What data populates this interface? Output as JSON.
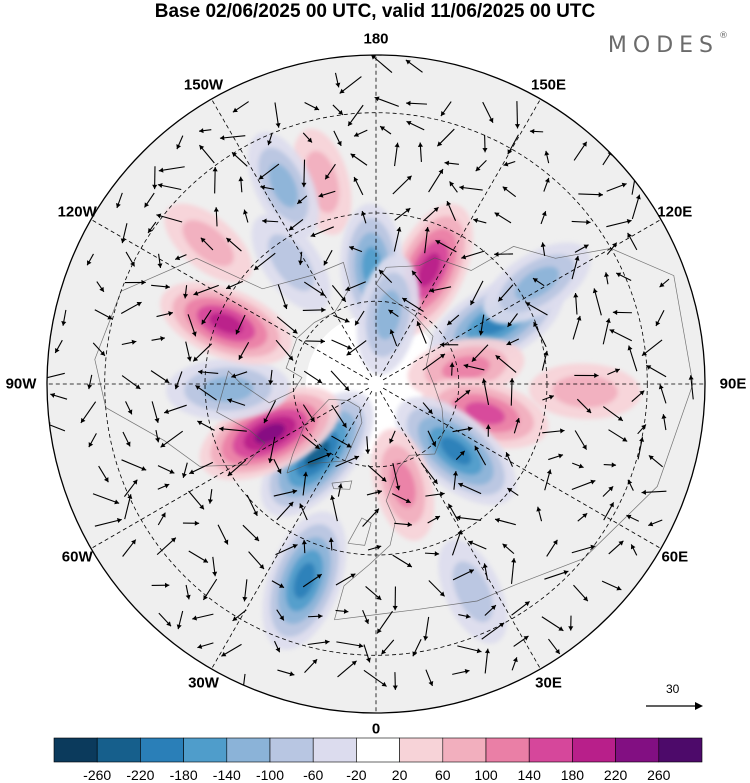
{
  "title": "Base 02/06/2025 00 UTC, valid 11/06/2025 00 UTC",
  "brand": {
    "name": "MODES",
    "mark": "®"
  },
  "map": {
    "projection": "north-polar-stereographic",
    "longitude_labels": [
      {
        "lon": 180,
        "text": "180"
      },
      {
        "lon": 150,
        "text": "150E"
      },
      {
        "lon": 120,
        "text": "120E"
      },
      {
        "lon": 90,
        "text": "90E"
      },
      {
        "lon": 60,
        "text": "60E"
      },
      {
        "lon": 30,
        "text": "30E"
      },
      {
        "lon": 0,
        "text": "0"
      },
      {
        "lon": -30,
        "text": "30W"
      },
      {
        "lon": -60,
        "text": "60W"
      },
      {
        "lon": -90,
        "text": "90W"
      },
      {
        "lon": -120,
        "text": "120W"
      },
      {
        "lon": -150,
        "text": "150W"
      }
    ]
  },
  "vector_reference": {
    "value": "30",
    "icon": "arrow-right"
  },
  "colorbar": {
    "tick_labels": [
      "-260",
      "-220",
      "-180",
      "-140",
      "-100",
      "-60",
      "-20",
      "20",
      "60",
      "100",
      "140",
      "180",
      "220",
      "260"
    ],
    "colors": [
      "#0b3a5c",
      "#165f8c",
      "#2a7fb8",
      "#4f9dcb",
      "#8bb3d8",
      "#b8c6e2",
      "#dcdcee",
      "#ffffff",
      "#f7d3d8",
      "#f2afbe",
      "#ea7fa6",
      "#d6479b",
      "#b81f8a",
      "#820f82",
      "#4d0a6a"
    ]
  },
  "anomaly_features": [
    {
      "name": "pos-east-siberian-sea",
      "sign": 1,
      "lon": 155,
      "lat": 60,
      "amp": 190
    },
    {
      "name": "pos-alaska-east",
      "sign": 1,
      "lon": -165,
      "lat": 42,
      "amp": 80
    },
    {
      "name": "neg-bering",
      "sign": -1,
      "lon": -178,
      "lat": 62,
      "amp": 140
    },
    {
      "name": "neg-pacific-west",
      "sign": -1,
      "lon": -155,
      "lat": 40,
      "amp": 100
    },
    {
      "name": "neg-chukotka",
      "sign": -1,
      "lon": 170,
      "lat": 73,
      "amp": 120
    },
    {
      "name": "neg-siberia",
      "sign": -1,
      "lon": 117,
      "lat": 58,
      "amp": 200
    },
    {
      "name": "neg-siberia-east",
      "sign": -1,
      "lon": 122,
      "lat": 46,
      "amp": 120
    },
    {
      "name": "pos-central-siberia",
      "sign": 1,
      "lon": 100,
      "lat": 68,
      "amp": 110
    },
    {
      "name": "pos-kara",
      "sign": 1,
      "lon": 75,
      "lat": 63,
      "amp": 150
    },
    {
      "name": "pos-central-asia",
      "sign": 1,
      "lon": 88,
      "lat": 42,
      "amp": 90
    },
    {
      "name": "neg-barents",
      "sign": -1,
      "lon": 50,
      "lat": 65,
      "amp": 200
    },
    {
      "name": "pos-europe",
      "sign": 1,
      "lon": 15,
      "lat": 65,
      "amp": 100
    },
    {
      "name": "neg-atlantic-north",
      "sign": -1,
      "lon": -40,
      "lat": 68,
      "amp": 220
    },
    {
      "name": "pos-greenland",
      "sign": 1,
      "lon": -65,
      "lat": 62,
      "amp": 220
    },
    {
      "name": "neg-hudson",
      "sign": -1,
      "lon": -88,
      "lat": 55,
      "amp": 130
    },
    {
      "name": "pos-canada-west",
      "sign": 1,
      "lon": -112,
      "lat": 52,
      "amp": 180
    },
    {
      "name": "neg-mid-atlantic",
      "sign": -1,
      "lon": -20,
      "lat": 42,
      "amp": 200
    },
    {
      "name": "neg-europe-east",
      "sign": -1,
      "lon": 25,
      "lat": 38,
      "amp": 90
    },
    {
      "name": "pos-canada-pacific",
      "sign": 1,
      "lon": -130,
      "lat": 40,
      "amp": 70
    },
    {
      "name": "neg-pacific",
      "sign": -1,
      "lon": -145,
      "lat": 55,
      "amp": 90
    }
  ]
}
